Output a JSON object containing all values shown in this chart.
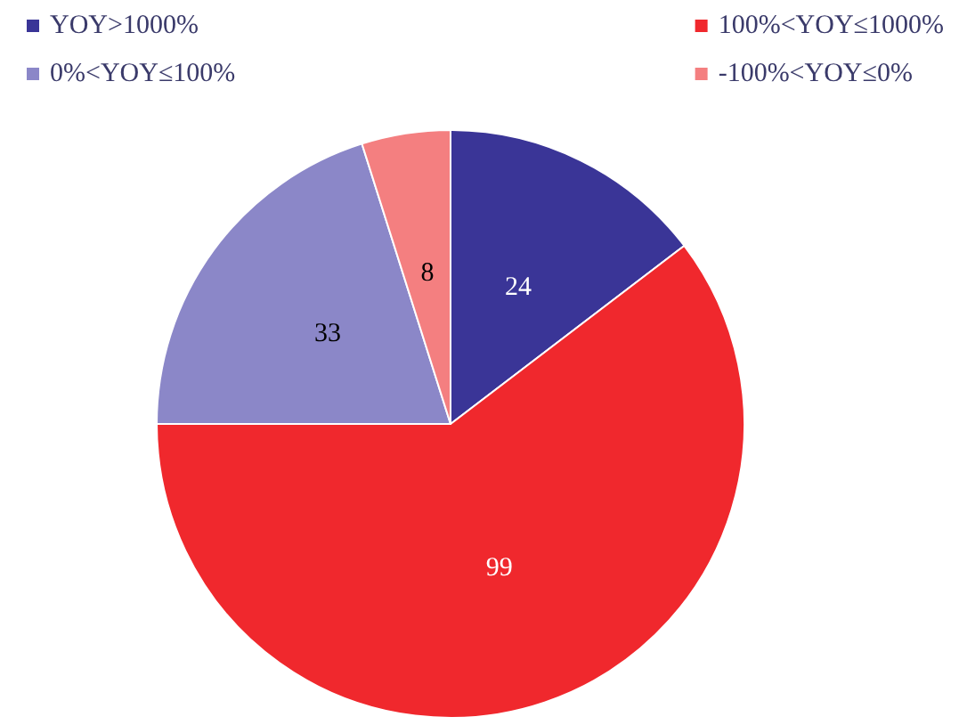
{
  "chart_data": {
    "type": "pie",
    "categories": [
      "YOY>1000%",
      "100%<YOY≤1000%",
      "0%<YOY≤100%",
      "-100%<YOY≤0%"
    ],
    "values": [
      24,
      99,
      33,
      8
    ],
    "colors": [
      "#3a3597",
      "#f0282d",
      "#8b87c8",
      "#f47f80"
    ],
    "data_labels": true,
    "legend": "top"
  }
}
